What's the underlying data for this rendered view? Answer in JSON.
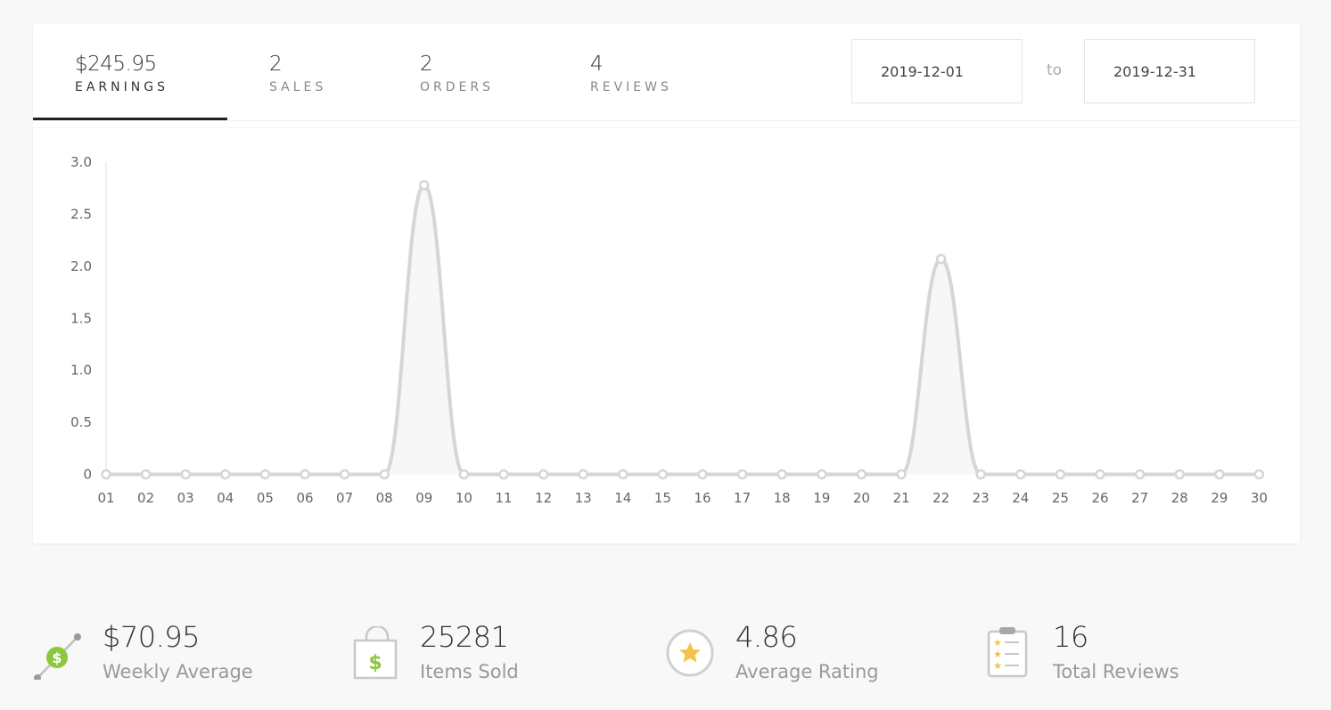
{
  "tabs": [
    {
      "value": "$245.95",
      "label": "EARNINGS"
    },
    {
      "value": "2",
      "label": "SALES"
    },
    {
      "value": "2",
      "label": "ORDERS"
    },
    {
      "value": "4",
      "label": "REVIEWS"
    }
  ],
  "date_range": {
    "from": "2019-12-01",
    "separator": "to",
    "to": "2019-12-31"
  },
  "chart_data": {
    "type": "area",
    "x": [
      "01",
      "02",
      "03",
      "04",
      "05",
      "06",
      "07",
      "08",
      "09",
      "10",
      "11",
      "12",
      "13",
      "14",
      "15",
      "16",
      "17",
      "18",
      "19",
      "20",
      "21",
      "22",
      "23",
      "24",
      "25",
      "26",
      "27",
      "28",
      "29",
      "30"
    ],
    "series": [
      {
        "values": [
          0,
          0,
          0,
          0,
          0,
          0,
          0,
          0,
          2.78,
          0,
          0,
          0,
          0,
          0,
          0,
          0,
          0,
          0,
          0,
          0,
          0,
          2.07,
          0,
          0,
          0,
          0,
          0,
          0,
          0,
          0
        ]
      }
    ],
    "ylim": [
      0,
      3.0
    ],
    "yticks": [
      "0",
      "0.5",
      "1.0",
      "1.5",
      "2.0",
      "2.5",
      "3.0"
    ],
    "grid": false,
    "line_color": "#d6d6d6",
    "fill_color": "#f7f7f7"
  },
  "stats": [
    {
      "value": "$70.95",
      "label": "Weekly Average",
      "icon": "trend-dollar-icon"
    },
    {
      "value": "25281",
      "label": "Items Sold",
      "icon": "shopping-bag-icon"
    },
    {
      "value": "4.86",
      "label": "Average Rating",
      "icon": "star-icon"
    },
    {
      "value": "16",
      "label": "Total Reviews",
      "icon": "clipboard-icon"
    }
  ],
  "colors": {
    "green": "#8dc63f",
    "star": "#f5c146",
    "icon_gray": "#c8c8c8",
    "active_tab": "#222222"
  }
}
